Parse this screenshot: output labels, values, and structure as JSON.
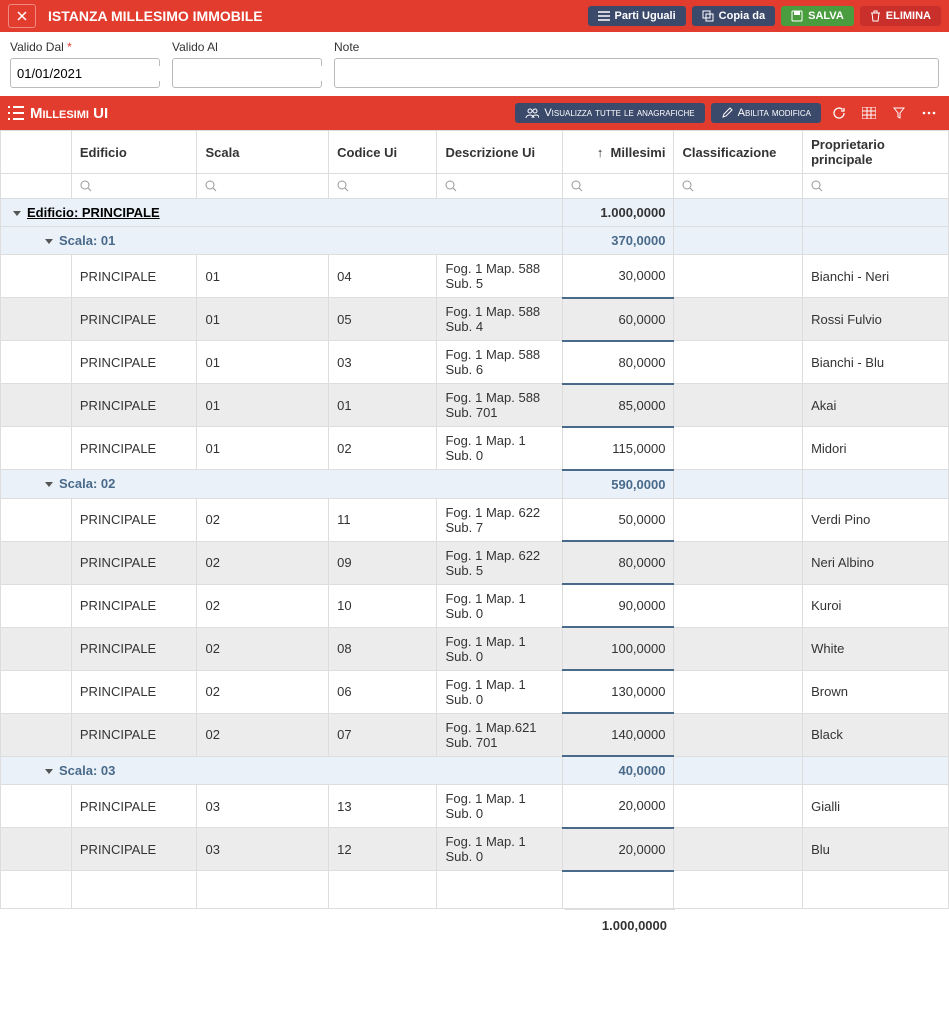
{
  "header": {
    "title": "ISTANZA MILLESIMO IMMOBILE",
    "parti_uguali": "Parti Uguali",
    "copia_da": "Copia da",
    "salva": "SALVA",
    "elimina": "ELIMINA"
  },
  "form": {
    "valido_dal_label": "Valido Dal",
    "valido_dal_value": "01/01/2021",
    "valido_al_label": "Valido Al",
    "note_label": "Note"
  },
  "section": {
    "title": "Millesimi UI",
    "visualizza": "Visualizza tutte le anagrafiche",
    "abilita": "Abilita modifica"
  },
  "columns": {
    "edificio": "Edificio",
    "scala": "Scala",
    "codice": "Codice Ui",
    "descrizione": "Descrizione Ui",
    "millesimi": "Millesimi",
    "classificazione": "Classificazione",
    "proprietario": "Proprietario principale"
  },
  "groups": {
    "edificio_label": "Edificio: PRINCIPALE",
    "edificio_total": "1.000,0000",
    "scala01_label": "Scala: 01",
    "scala01_total": "370,0000",
    "scala02_label": "Scala: 02",
    "scala02_total": "590,0000",
    "scala03_label": "Scala: 03",
    "scala03_total": "40,0000"
  },
  "rows": {
    "s01": [
      {
        "edificio": "PRINCIPALE",
        "scala": "01",
        "codice": "04",
        "desc": "Fog. 1 Map. 588 Sub. 5",
        "mill": "30,0000",
        "prop": "Bianchi - Neri"
      },
      {
        "edificio": "PRINCIPALE",
        "scala": "01",
        "codice": "05",
        "desc": "Fog. 1 Map. 588 Sub. 4",
        "mill": "60,0000",
        "prop": "Rossi Fulvio"
      },
      {
        "edificio": "PRINCIPALE",
        "scala": "01",
        "codice": "03",
        "desc": "Fog. 1 Map. 588 Sub. 6",
        "mill": "80,0000",
        "prop": "Bianchi - Blu"
      },
      {
        "edificio": "PRINCIPALE",
        "scala": "01",
        "codice": "01",
        "desc": "Fog. 1 Map. 588 Sub. 701",
        "mill": "85,0000",
        "prop": "Akai"
      },
      {
        "edificio": "PRINCIPALE",
        "scala": "01",
        "codice": "02",
        "desc": "Fog. 1 Map. 1 Sub. 0",
        "mill": "115,0000",
        "prop": "Midori"
      }
    ],
    "s02": [
      {
        "edificio": "PRINCIPALE",
        "scala": "02",
        "codice": "11",
        "desc": "Fog. 1 Map. 622 Sub. 7",
        "mill": "50,0000",
        "prop": "Verdi Pino"
      },
      {
        "edificio": "PRINCIPALE",
        "scala": "02",
        "codice": "09",
        "desc": "Fog. 1 Map. 622 Sub. 5",
        "mill": "80,0000",
        "prop": "Neri Albino"
      },
      {
        "edificio": "PRINCIPALE",
        "scala": "02",
        "codice": "10",
        "desc": "Fog. 1 Map. 1 Sub. 0",
        "mill": "90,0000",
        "prop": "Kuroi"
      },
      {
        "edificio": "PRINCIPALE",
        "scala": "02",
        "codice": "08",
        "desc": "Fog. 1 Map. 1 Sub. 0",
        "mill": "100,0000",
        "prop": "White"
      },
      {
        "edificio": "PRINCIPALE",
        "scala": "02",
        "codice": "06",
        "desc": "Fog. 1 Map. 1 Sub. 0",
        "mill": "130,0000",
        "prop": "Brown"
      },
      {
        "edificio": "PRINCIPALE",
        "scala": "02",
        "codice": "07",
        "desc": "Fog. 1 Map.621 Sub. 701",
        "mill": "140,0000",
        "prop": "Black"
      }
    ],
    "s03": [
      {
        "edificio": "PRINCIPALE",
        "scala": "03",
        "codice": "13",
        "desc": "Fog. 1 Map. 1 Sub. 0",
        "mill": "20,0000",
        "prop": "Gialli"
      },
      {
        "edificio": "PRINCIPALE",
        "scala": "03",
        "codice": "12",
        "desc": "Fog. 1 Map. 1 Sub. 0",
        "mill": "20,0000",
        "prop": "Blu"
      }
    ]
  },
  "footer_total": "1.000,0000"
}
